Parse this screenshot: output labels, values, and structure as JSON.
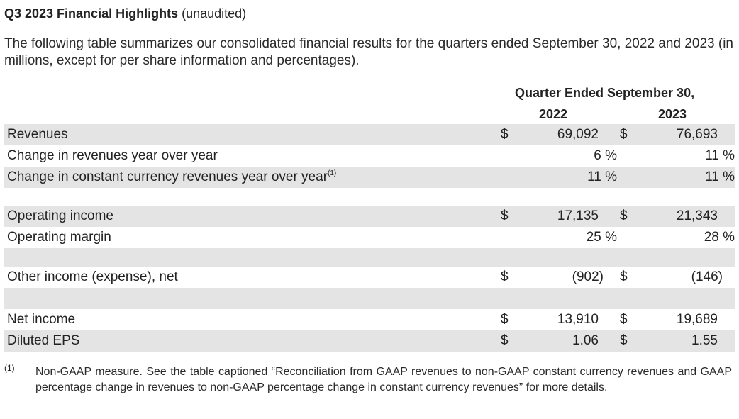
{
  "heading": {
    "title": "Q3 2023 Financial Highlights",
    "subtitle": "(unaudited)"
  },
  "intro": "The following table summarizes our consolidated financial results for the quarters ended September 30, 2022 and 2023 (in millions, except for per share information and percentages).",
  "table": {
    "period_header": "Quarter Ended September 30,",
    "col1_year": "2022",
    "col2_year": "2023",
    "rows": {
      "revenues": {
        "label": "Revenues",
        "c1_cur": "$",
        "c1": "69,092",
        "c2_cur": "$",
        "c2": "76,693"
      },
      "rev_change": {
        "label": "Change in revenues year over year",
        "c1": "6 %",
        "c2": "11 %"
      },
      "cc_change": {
        "label": "Change in constant currency revenues year over year",
        "footnote_ref": "(1)",
        "c1": "11 %",
        "c2": "11 %"
      },
      "op_income": {
        "label": "Operating income",
        "c1_cur": "$",
        "c1": "17,135",
        "c2_cur": "$",
        "c2": "21,343"
      },
      "op_margin": {
        "label": "Operating margin",
        "c1": "25 %",
        "c2": "28 %"
      },
      "other_income": {
        "label": "Other income (expense), net",
        "c1_cur": "$",
        "c1": "(902)",
        "c2_cur": "$",
        "c2": "(146)"
      },
      "net_income": {
        "label": "Net income",
        "c1_cur": "$",
        "c1": "13,910",
        "c2_cur": "$",
        "c2": "19,689"
      },
      "eps": {
        "label": "Diluted EPS",
        "c1_cur": "$",
        "c1": "1.06",
        "c2_cur": "$",
        "c2": "1.55"
      }
    }
  },
  "footnote": {
    "marker": "(1)",
    "text": "Non-GAAP measure. See the table captioned “Reconciliation from GAAP revenues to non-GAAP constant currency revenues and GAAP percentage change in revenues to non-GAAP percentage change in constant currency revenues” for more details."
  }
}
